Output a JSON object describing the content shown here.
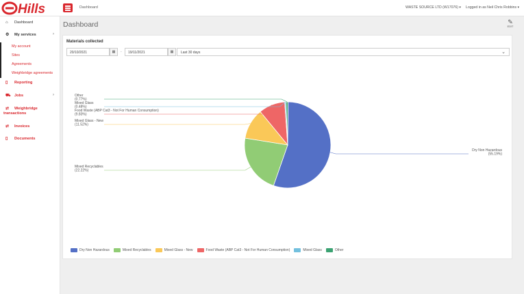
{
  "brand": {
    "logo_text": "Hills",
    "accent": "#d9262c"
  },
  "topbar": {
    "breadcrumb": "Dashboard",
    "company": "WASTE SOURCE LTD (W17076) ▾",
    "user": "Logged in as Neil Chris Robbins ▾"
  },
  "sidebar": {
    "dashboard": "Dashboard",
    "my_services": "My services",
    "sub": [
      "My account",
      "Sites",
      "Agreements",
      "Weighbridge agreements"
    ],
    "reporting": "Reporting",
    "jobs": "Jobs",
    "weighbridge_1": "Weighbridge",
    "weighbridge_2": "transactions",
    "invoices": "Invoices",
    "documents": "Documents"
  },
  "page": {
    "title": "Dashboard",
    "edit_label": "EDIT"
  },
  "card": {
    "title": "Materials collected",
    "date_from": "20/10/2021",
    "date_to": "19/11/2021",
    "range": "Last 30 days"
  },
  "chart_data": {
    "type": "pie",
    "title": "",
    "slices": [
      {
        "name": "Dry Non Hazardous",
        "percent": 55.19,
        "label": "(55.19%)",
        "color": "#5470c6"
      },
      {
        "name": "Mixed Recyclables",
        "percent": 22.22,
        "label": "(22.22%)",
        "color": "#91cc75"
      },
      {
        "name": "Mixed Glass - New",
        "percent": 11.52,
        "label": "(11.52%)",
        "color": "#fac858"
      },
      {
        "name": "Food Waste (ABP Cat3 - Not For Human Consumption)",
        "percent": 9.83,
        "label": "(9.83%)",
        "color": "#ee6666"
      },
      {
        "name": "Mixed Glass",
        "percent": 0.48,
        "label": "(0.48%)",
        "color": "#73c0de"
      },
      {
        "name": "Other",
        "percent": 0.77,
        "label": "(0.77%)",
        "color": "#3ba272"
      }
    ],
    "legend_position": "bottom-left"
  }
}
